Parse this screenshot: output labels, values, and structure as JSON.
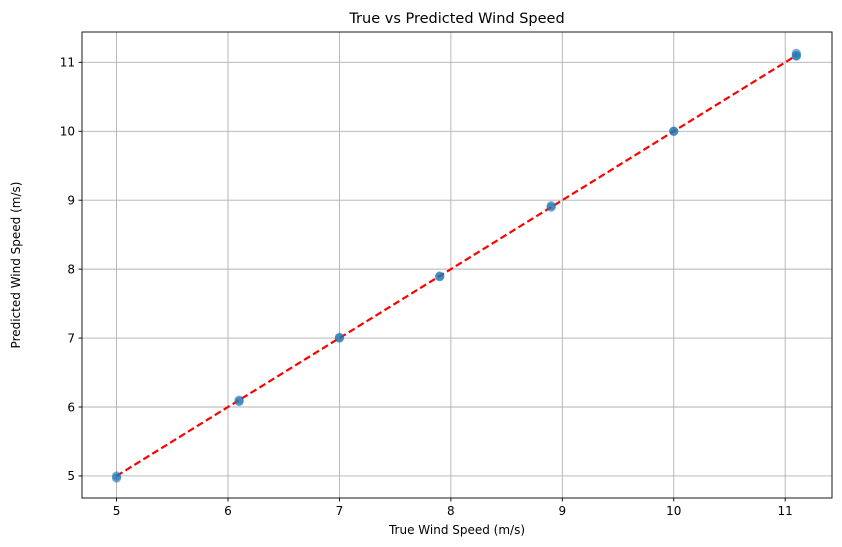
{
  "chart_data": {
    "type": "scatter",
    "title": "True vs Predicted Wind Speed",
    "xlabel": "True Wind Speed (m/s)",
    "ylabel": "Predicted Wind Speed (m/s)",
    "xlim": [
      4.69,
      11.42
    ],
    "ylim": [
      4.68,
      11.44
    ],
    "xticks": [
      5,
      6,
      7,
      8,
      9,
      10,
      11
    ],
    "yticks": [
      5,
      6,
      7,
      8,
      9,
      10,
      11
    ],
    "grid": true,
    "points": {
      "color": "#1f77b4",
      "x": [
        5.0,
        5.0,
        6.1,
        6.1,
        7.0,
        7.0,
        7.9,
        7.9,
        8.9,
        8.9,
        10.0,
        10.0,
        11.1,
        11.1,
        11.1
      ],
      "y": [
        5.0,
        4.97,
        6.1,
        6.08,
        7.0,
        7.01,
        7.9,
        7.89,
        8.9,
        8.92,
        10.0,
        10.0,
        11.1,
        11.13,
        11.09
      ]
    },
    "reference_line": {
      "style": "dashed",
      "color": "#ff0000",
      "x": [
        5.0,
        11.1
      ],
      "y": [
        5.0,
        11.1
      ]
    }
  }
}
